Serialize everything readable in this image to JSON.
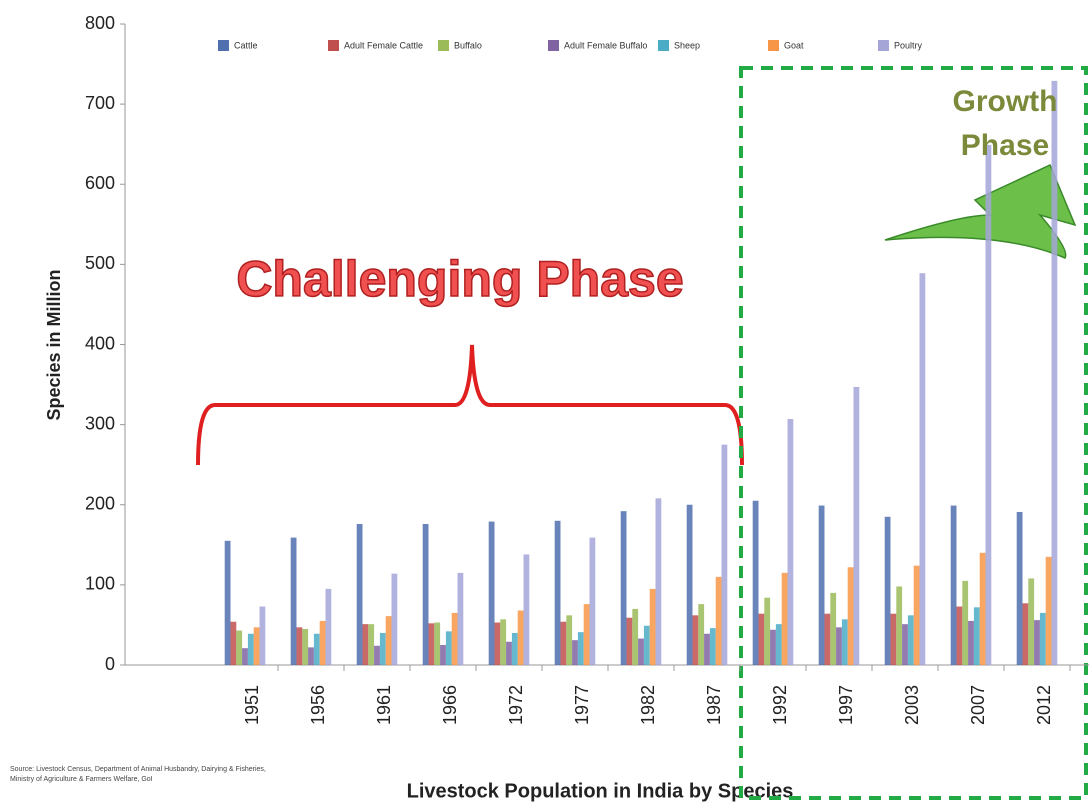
{
  "chart_data": {
    "type": "bar",
    "title": "Livestock Population in India by Species",
    "y_label": "Species in Million",
    "annotations": [
      "Challenging Phase",
      "Growth Phase"
    ],
    "source": "Source: Livestock Census, Department of Animal Husbandry, Dairying & Fisheries, Ministry of Agriculture & Farmers Welfare, GoI",
    "categories": [
      "1951",
      "1956",
      "1961",
      "1966",
      "1972",
      "1977",
      "1982",
      "1987",
      "1992",
      "1997",
      "2003",
      "2007",
      "2012"
    ],
    "series": [
      {
        "name": "Cattle",
        "color": "#4f6fae",
        "values": [
          155,
          159,
          176,
          176,
          179,
          180,
          192,
          200,
          205,
          199,
          185,
          199,
          191
        ]
      },
      {
        "name": "Adult Female Cattle",
        "color": "#c0504d",
        "values": [
          54,
          47,
          51,
          52,
          53,
          54,
          59,
          62,
          64,
          64,
          64,
          73,
          77
        ]
      },
      {
        "name": "Buffalo",
        "color": "#9bbb59",
        "values": [
          43,
          45,
          51,
          53,
          57,
          62,
          70,
          76,
          84,
          90,
          98,
          105,
          108
        ]
      },
      {
        "name": "Adult Female Buffalo",
        "color": "#8064a2",
        "values": [
          21,
          22,
          24,
          25,
          29,
          31,
          33,
          39,
          44,
          47,
          51,
          55,
          56
        ]
      },
      {
        "name": "Sheep",
        "color": "#4bacc6",
        "values": [
          39,
          39,
          40,
          42,
          40,
          41,
          49,
          46,
          51,
          57,
          62,
          72,
          65
        ]
      },
      {
        "name": "Goat",
        "color": "#f79646",
        "values": [
          47,
          55,
          61,
          65,
          68,
          76,
          95,
          110,
          115,
          122,
          124,
          140,
          135
        ]
      },
      {
        "name": "Poultry",
        "color": "#a5a5d8",
        "values": [
          73,
          95,
          114,
          115,
          138,
          159,
          208,
          275,
          307,
          347,
          489,
          649,
          729
        ]
      }
    ],
    "ylim": [
      0,
      800
    ],
    "yticks": [
      0,
      100,
      200,
      300,
      400,
      500,
      600,
      700,
      800
    ],
    "grid": false
  }
}
